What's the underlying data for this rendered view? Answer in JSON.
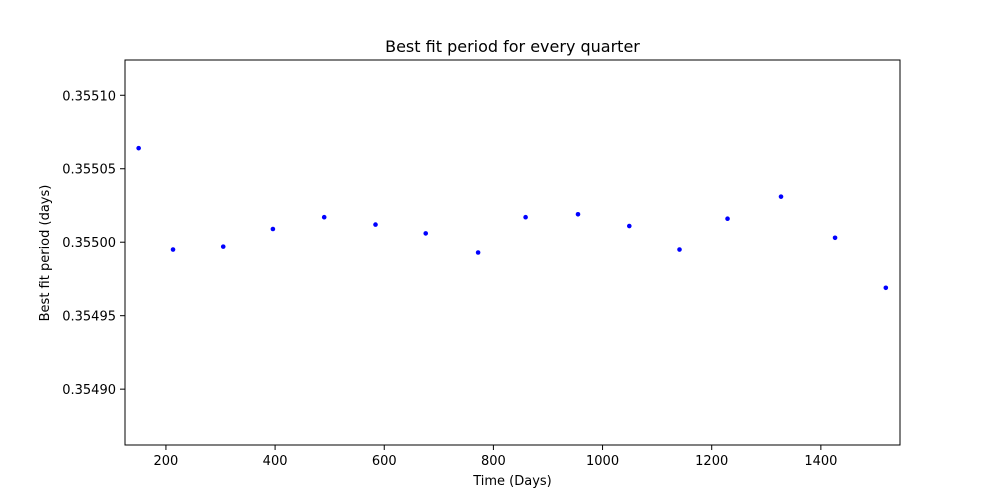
{
  "chart_data": {
    "type": "scatter",
    "title": "Best fit period for every quarter",
    "xlabel": "Time (Days)",
    "ylabel": "Best fit period (days)",
    "xlim": [
      125,
      1545
    ],
    "ylim": [
      0.354862,
      0.355124
    ],
    "xticks": [
      200,
      400,
      600,
      800,
      1000,
      1200,
      1400
    ],
    "xtick_labels": [
      "200",
      "400",
      "600",
      "800",
      "1000",
      "1200",
      "1400"
    ],
    "yticks": [
      0.3549,
      0.35495,
      0.355,
      0.35505,
      0.3551
    ],
    "ytick_labels": [
      "0.35490",
      "0.35495",
      "0.35500",
      "0.35505",
      "0.35510"
    ],
    "grid": false,
    "marker_color": "#0000ff",
    "series": [
      {
        "x": [
          150,
          213,
          305,
          396,
          490,
          584,
          676,
          772,
          859,
          955,
          1049,
          1141,
          1229,
          1327,
          1426,
          1519
        ],
        "y": [
          0.355064,
          0.354995,
          0.354997,
          0.355009,
          0.355017,
          0.355012,
          0.355006,
          0.354993,
          0.355017,
          0.355019,
          0.355011,
          0.354995,
          0.355016,
          0.355031,
          0.355003,
          0.354969
        ]
      }
    ]
  }
}
